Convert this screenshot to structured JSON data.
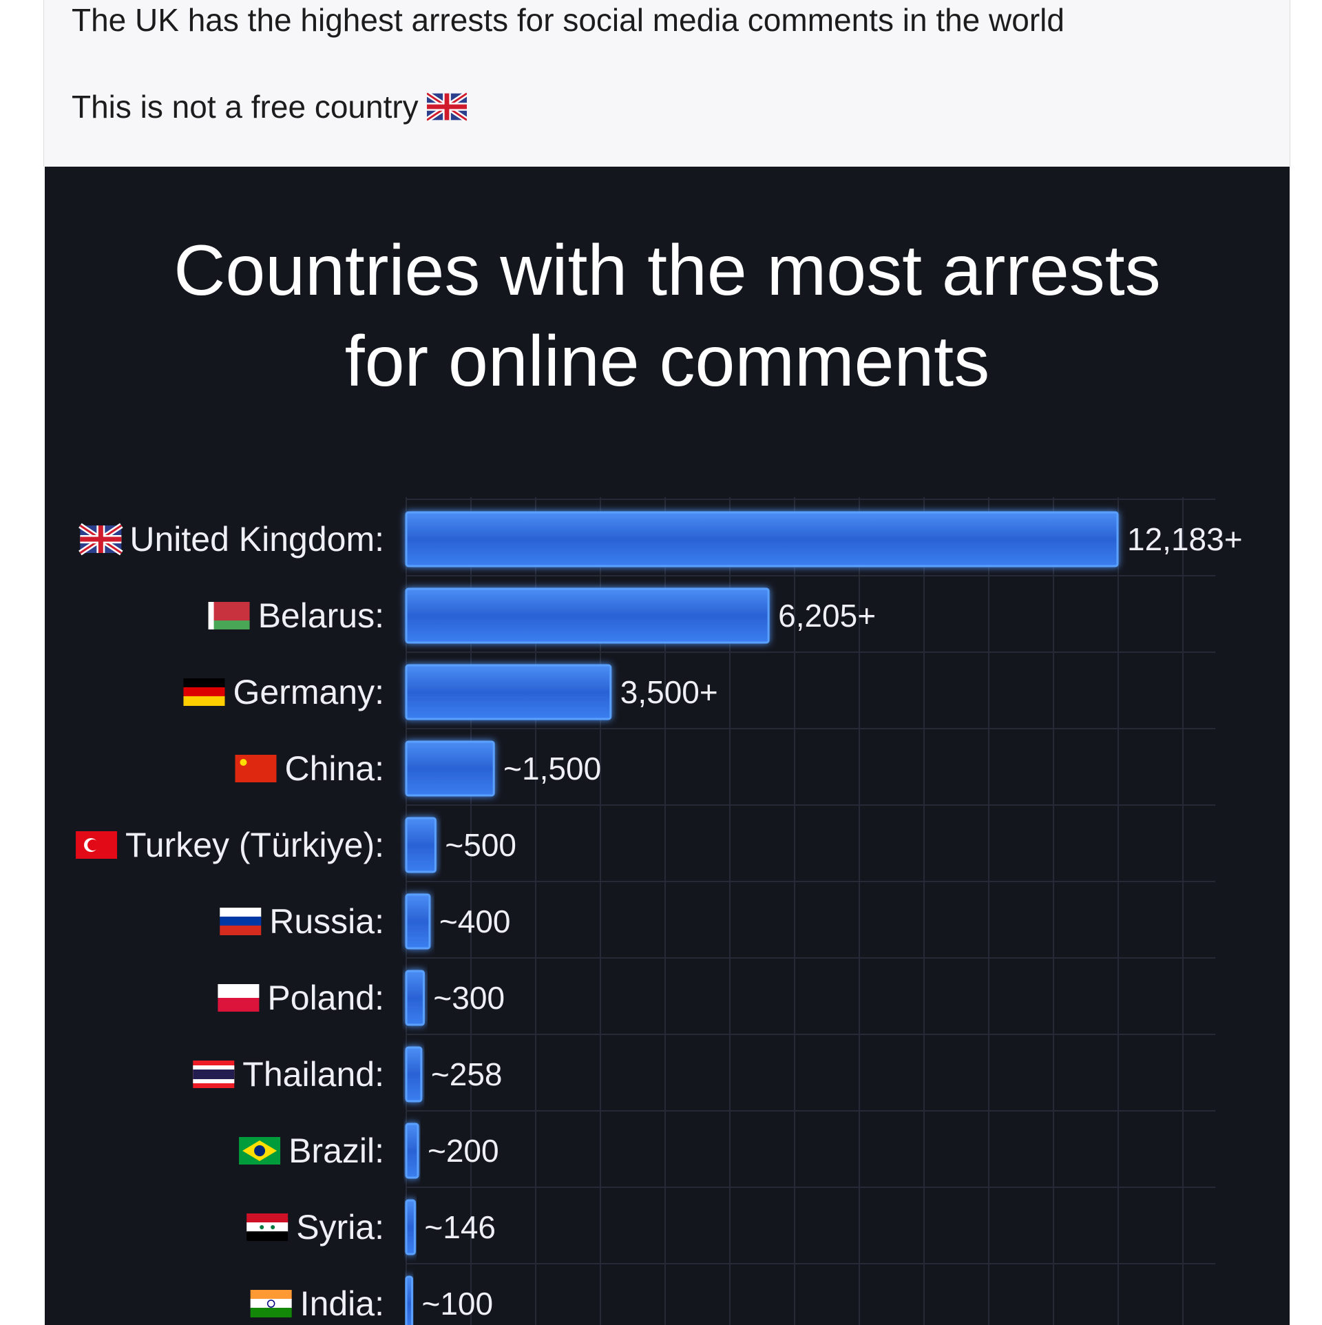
{
  "post": {
    "line1": "The UK has the highest arrests for social media comments in the world",
    "line2": "This is not a free country",
    "line2_icon": "uk-flag-icon"
  },
  "chart_data": {
    "type": "bar",
    "orientation": "horizontal",
    "title_line1": "Countries with the most arrests",
    "title_line2": "for online comments",
    "categories": [
      "United Kingdom:",
      "Belarus:",
      "Germany:",
      "China:",
      "Turkey (Türkiye):",
      "Russia:",
      "Poland:",
      "Thailand:",
      "Brazil:",
      "Syria:",
      "India:"
    ],
    "flag_icons": [
      "uk-flag-icon",
      "belarus-flag-icon",
      "germany-flag-icon",
      "china-flag-icon",
      "turkey-flag-icon",
      "russia-flag-icon",
      "poland-flag-icon",
      "thailand-flag-icon",
      "brazil-flag-icon",
      "syria-flag-icon",
      "india-flag-icon"
    ],
    "values": [
      12183,
      6205,
      3500,
      1500,
      500,
      400,
      300,
      258,
      200,
      146,
      100
    ],
    "value_labels": [
      "12,183+",
      "6,205+",
      "3,500+",
      "~1,500",
      "~500",
      "~400",
      "~300",
      "~258",
      "~200",
      "~146",
      "~100"
    ],
    "xlim": [
      0,
      12183
    ],
    "grid": true,
    "colors": {
      "bar": "#2f6fe0",
      "bar_highlight": "#5aa0ff",
      "background": "#14161e",
      "grid": "#262a36"
    }
  }
}
